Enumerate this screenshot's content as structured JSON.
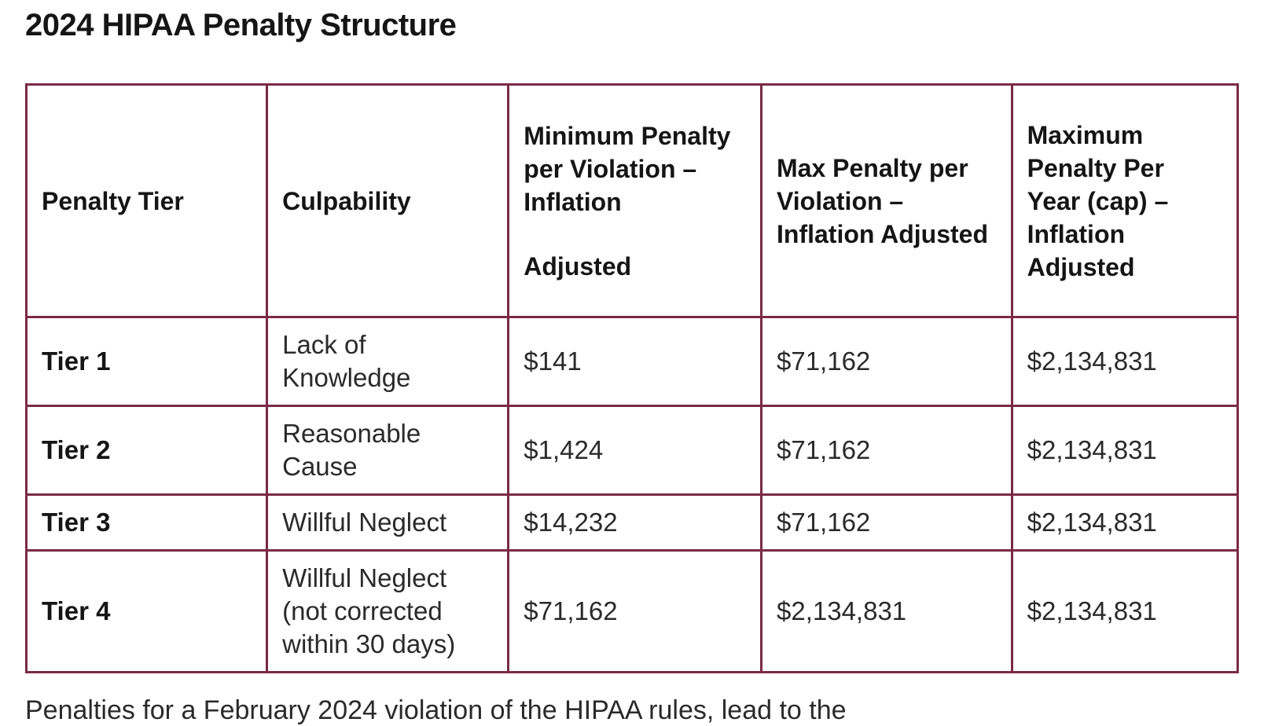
{
  "title": "2024 HIPAA Penalty Structure",
  "table": {
    "headers": {
      "tier": "Penalty Tier",
      "culpability": "Culpability",
      "min_line1": "Minimum Penalty per Violation – Inflation",
      "min_line2": "Adjusted",
      "max_violation": "Max Penalty per Violation – Inflation Adjusted",
      "max_year": "Maximum Penalty Per Year (cap) – Inflation Adjusted"
    },
    "rows": [
      {
        "tier": "Tier 1",
        "culpability": "Lack of Knowledge",
        "min": "$141",
        "max_violation": "$71,162",
        "max_year": "$2,134,831"
      },
      {
        "tier": "Tier 2",
        "culpability": "Reasonable Cause",
        "min": "$1,424",
        "max_violation": "$71,162",
        "max_year": "$2,134,831"
      },
      {
        "tier": "Tier 3",
        "culpability": "Willful Neglect",
        "min": "$14,232",
        "max_violation": "$71,162",
        "max_year": "$2,134,831"
      },
      {
        "tier": "Tier 4",
        "culpability": "Willful Neglect (not corrected within 30 days)",
        "min": "$71,162",
        "max_violation": "$2,134,831",
        "max_year": "$2,134,831"
      }
    ]
  },
  "footer_partial": "Penalties for a February 2024 violation of the HIPAA rules, lead to the",
  "colors": {
    "border": "#7a2a46"
  }
}
